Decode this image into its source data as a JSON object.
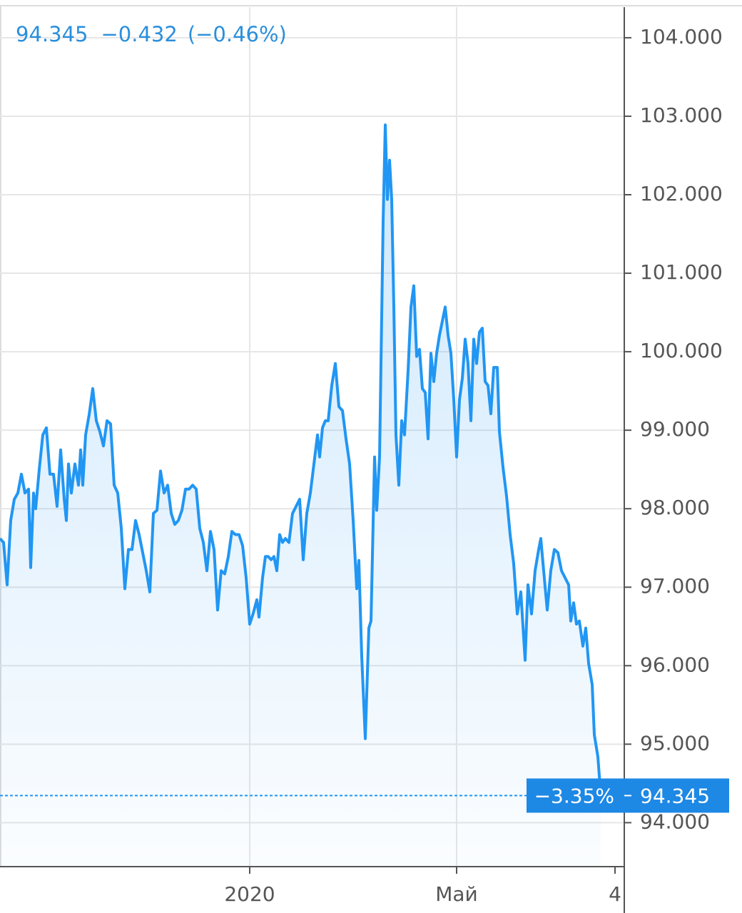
{
  "chart_data": {
    "type": "line",
    "header": {
      "price": "94.345",
      "change": "−0.432",
      "change_pct": "(−0.46%)"
    },
    "price_tag": {
      "change_pct": "−3.35%"
    },
    "x": [
      0,
      5,
      10,
      15,
      20,
      25,
      30,
      35,
      40,
      43,
      47,
      50,
      55,
      60,
      65,
      70,
      75,
      80,
      85,
      90,
      93,
      96,
      100,
      105,
      110,
      113,
      116,
      120,
      125,
      130,
      135,
      140,
      145,
      150,
      155,
      160,
      165,
      170,
      175,
      180,
      185,
      190,
      195,
      200,
      205,
      210,
      215,
      220,
      225,
      230,
      235,
      240,
      245,
      250,
      255,
      260,
      265,
      270,
      275,
      280,
      285,
      290,
      295,
      300,
      305,
      310,
      315,
      320,
      325,
      330,
      335,
      340,
      345,
      350,
      355,
      360,
      363,
      368,
      372,
      376,
      380,
      384,
      388,
      392,
      396,
      400,
      405,
      410,
      415,
      420,
      425,
      430,
      435,
      440,
      445,
      448,
      452,
      456,
      460,
      465,
      470,
      475,
      480,
      485,
      490,
      495,
      500,
      503,
      507,
      512,
      517,
      520,
      525,
      528,
      532,
      537,
      540,
      543,
      546,
      549,
      552,
      555,
      559,
      563,
      567,
      572,
      576,
      580,
      584,
      588,
      592,
      596,
      600,
      604,
      608,
      612,
      616,
      620,
      624,
      628,
      632,
      636,
      640,
      644,
      648,
      652,
      656,
      660,
      664,
      668,
      672,
      676,
      680,
      684,
      688,
      692,
      697,
      700,
      705,
      710,
      715,
      720,
      725,
      730,
      736,
      740,
      745,
      750,
      755,
      758,
      762,
      767,
      772,
      777,
      782,
      787,
      792,
      797,
      800,
      804,
      808,
      812,
      817,
      821,
      825,
      830,
      833,
      838,
      842
    ],
    "series": [
      {
        "color": "#2196f3",
        "values": [
          97.62,
          97.57,
          97.03,
          97.85,
          98.12,
          98.2,
          98.44,
          98.2,
          98.25,
          97.25,
          98.2,
          98.0,
          98.5,
          98.94,
          99.03,
          98.44,
          98.44,
          98.03,
          98.75,
          98.12,
          97.85,
          98.57,
          98.2,
          98.57,
          98.3,
          98.75,
          98.3,
          98.94,
          99.2,
          99.53,
          99.12,
          98.98,
          98.8,
          99.12,
          99.08,
          98.3,
          98.2,
          97.75,
          96.98,
          97.48,
          97.48,
          97.85,
          97.67,
          97.44,
          97.21,
          96.94,
          97.94,
          97.98,
          98.48,
          98.2,
          98.3,
          97.94,
          97.8,
          97.85,
          97.98,
          98.25,
          98.25,
          98.3,
          98.25,
          97.75,
          97.57,
          97.21,
          97.71,
          97.48,
          96.71,
          97.21,
          97.17,
          97.39,
          97.71,
          97.67,
          97.67,
          97.53,
          97.12,
          96.53,
          96.67,
          96.84,
          96.62,
          97.12,
          97.39,
          97.39,
          97.35,
          97.39,
          97.21,
          97.67,
          97.57,
          97.62,
          97.57,
          97.94,
          98.03,
          98.12,
          97.35,
          97.94,
          98.2,
          98.57,
          98.94,
          98.66,
          99.03,
          99.12,
          99.12,
          99.57,
          99.85,
          99.3,
          99.25,
          98.89,
          98.57,
          97.85,
          96.98,
          97.34,
          96.12,
          95.07,
          96.48,
          96.57,
          98.66,
          97.98,
          98.66,
          101.66,
          102.89,
          101.94,
          102.44,
          101.94,
          100.57,
          98.94,
          98.3,
          99.12,
          98.94,
          99.76,
          100.57,
          100.84,
          99.94,
          100.03,
          99.53,
          99.48,
          98.89,
          99.98,
          99.62,
          99.98,
          100.21,
          100.39,
          100.57,
          100.21,
          99.98,
          99.39,
          98.66,
          99.39,
          99.66,
          100.16,
          99.85,
          99.12,
          100.16,
          99.85,
          100.25,
          100.3,
          99.62,
          99.57,
          99.21,
          99.8,
          99.8,
          98.98,
          98.53,
          98.16,
          97.67,
          97.3,
          96.66,
          96.94,
          96.07,
          97.03,
          96.66,
          97.21,
          97.48,
          97.62,
          97.21,
          96.71,
          97.21,
          97.48,
          97.44,
          97.21,
          97.12,
          97.03,
          96.57,
          96.8,
          96.53,
          96.57,
          96.25,
          96.48,
          96.03,
          95.76,
          95.12,
          94.84,
          94.345
        ]
      }
    ],
    "xlim": [
      0,
      875
    ],
    "xticks": [
      {
        "value": 350,
        "label": "2020"
      },
      {
        "value": 640,
        "label": "Май"
      },
      {
        "value": 862,
        "label": "4"
      }
    ],
    "ylim": [
      93.44,
      104.39
    ],
    "yticks": [
      {
        "value": 94,
        "label": "94.000"
      },
      {
        "value": 95,
        "label": "95.000"
      },
      {
        "value": 96,
        "label": "96.000"
      },
      {
        "value": 97,
        "label": "97.000"
      },
      {
        "value": 98,
        "label": "98.000"
      },
      {
        "value": 99,
        "label": "99.000"
      },
      {
        "value": 100,
        "label": "100.000"
      },
      {
        "value": 101,
        "label": "101.000"
      },
      {
        "value": 102,
        "label": "102.000"
      },
      {
        "value": 103,
        "label": "103.000"
      },
      {
        "value": 104,
        "label": "104.000"
      }
    ],
    "grid": true
  }
}
